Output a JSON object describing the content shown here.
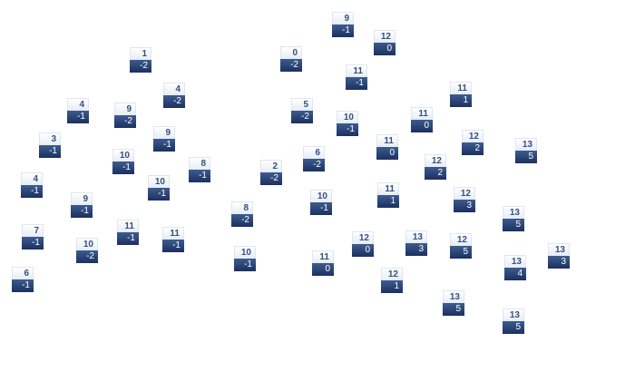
{
  "nodes": [
    {
      "label": "1",
      "value": "-2"
    },
    {
      "label": "0",
      "value": "-2"
    },
    {
      "label": "4",
      "value": "-2"
    },
    {
      "label": "4",
      "value": "-1"
    },
    {
      "label": "9",
      "value": "-2"
    },
    {
      "label": "5",
      "value": "-2"
    },
    {
      "label": "3",
      "value": "-1"
    },
    {
      "label": "9",
      "value": "-1"
    },
    {
      "label": "10",
      "value": "-1"
    },
    {
      "label": "8",
      "value": "-1"
    },
    {
      "label": "2",
      "value": "-2"
    },
    {
      "label": "6",
      "value": "-2"
    },
    {
      "label": "4",
      "value": "-1"
    },
    {
      "label": "10",
      "value": "-1"
    },
    {
      "label": "9",
      "value": "-1"
    },
    {
      "label": "7",
      "value": "-1"
    },
    {
      "label": "8",
      "value": "-2"
    },
    {
      "label": "11",
      "value": "-1"
    },
    {
      "label": "11",
      "value": "-1"
    },
    {
      "label": "10",
      "value": "-2"
    },
    {
      "label": "10",
      "value": "-1"
    },
    {
      "label": "6",
      "value": "-1"
    },
    {
      "label": "9",
      "value": "-1"
    },
    {
      "label": "12",
      "value": "0"
    },
    {
      "label": "11",
      "value": "-1"
    },
    {
      "label": "11",
      "value": "1"
    },
    {
      "label": "10",
      "value": "-1"
    },
    {
      "label": "11",
      "value": "0"
    },
    {
      "label": "12",
      "value": "2"
    },
    {
      "label": "13",
      "value": "5"
    },
    {
      "label": "11",
      "value": "0"
    },
    {
      "label": "12",
      "value": "2"
    },
    {
      "label": "10",
      "value": "-1"
    },
    {
      "label": "11",
      "value": "1"
    },
    {
      "label": "12",
      "value": "3"
    },
    {
      "label": "13",
      "value": "5"
    },
    {
      "label": "12",
      "value": "0"
    },
    {
      "label": "13",
      "value": "3"
    },
    {
      "label": "12",
      "value": "5"
    },
    {
      "label": "13",
      "value": "3"
    },
    {
      "label": "11",
      "value": "0"
    },
    {
      "label": "13",
      "value": "4"
    },
    {
      "label": "12",
      "value": "1"
    },
    {
      "label": "13",
      "value": "5"
    },
    {
      "label": "13",
      "value": "5"
    }
  ]
}
